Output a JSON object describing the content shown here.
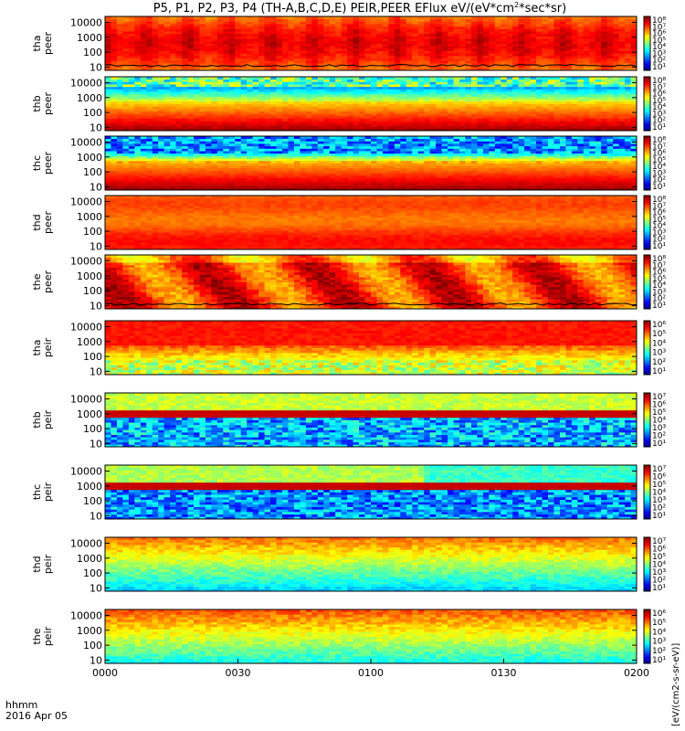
{
  "chart_data": {
    "type": "heatmap",
    "title": "P5, P1, P2, P3, P4 (TH-A,B,C,D,E) PEIR,PEER EFlux eV/(eV*cm",
    "title_sup": "2",
    "title_tail": "*sec*sr)",
    "x_axis": {
      "tick_labels": [
        "0000",
        "0030",
        "0100",
        "0130",
        "0200"
      ],
      "minutes": [
        0,
        30,
        60,
        90,
        120
      ],
      "corner_label_1": "hhmm",
      "corner_label_2": "2016 Apr 05"
    },
    "y_axis": {
      "scale": "log",
      "range": [
        6,
        25000
      ],
      "tick_labels": [
        "10",
        "100",
        "1000",
        "10000"
      ]
    },
    "colorbar_units": "[eV/(cm2-s-sr-eV)]",
    "panels": [
      {
        "probe": "tha",
        "product": "peer",
        "cbar_ticks": [
          "10⁸",
          "10⁷",
          "10⁶",
          "10⁵",
          "10⁴",
          "10³",
          "10²",
          "10¹"
        ],
        "signal": "hot-broad",
        "low_cutoff_line": true
      },
      {
        "probe": "thb",
        "product": "peer",
        "cbar_ticks": [
          "10⁸",
          "10⁷",
          "10⁶",
          "10⁵",
          "10⁴",
          "10³",
          "10²",
          "10¹"
        ],
        "signal": "cold-electrons"
      },
      {
        "probe": "thc",
        "product": "peer",
        "cbar_ticks": [
          "10⁸",
          "10⁷",
          "10⁶",
          "10⁵",
          "10⁴",
          "10³",
          "10²",
          "10¹"
        ],
        "signal": "cold-electrons-noisy"
      },
      {
        "probe": "thd",
        "product": "peer",
        "cbar_ticks": [
          "10⁸",
          "10⁷",
          "10⁶",
          "10⁵",
          "10⁴",
          "10³",
          "10²",
          "10¹"
        ],
        "signal": "warm-uniform"
      },
      {
        "probe": "the",
        "product": "peer",
        "cbar_ticks": [
          "10⁸",
          "10⁷",
          "10⁶",
          "10⁵",
          "10⁴",
          "10³",
          "10²",
          "10¹"
        ],
        "signal": "hot-variable",
        "low_cutoff_line": true
      },
      {
        "probe": "tha",
        "product": "peir",
        "cbar_ticks": [
          "10⁶",
          "10⁵",
          "10⁴",
          "10³",
          "10²",
          "10¹"
        ],
        "signal": "ion-hot"
      },
      {
        "probe": "thb",
        "product": "peir",
        "cbar_ticks": [
          "10⁷",
          "10⁶",
          "10⁵",
          "10⁴",
          "10³",
          "10²",
          "10¹"
        ],
        "signal": "ion-band"
      },
      {
        "probe": "thc",
        "product": "peir",
        "cbar_ticks": [
          "10⁷",
          "10⁶",
          "10⁵",
          "10⁴",
          "10³",
          "10²",
          "10¹"
        ],
        "signal": "ion-band-late"
      },
      {
        "probe": "thd",
        "product": "peir",
        "cbar_ticks": [
          "10⁷",
          "10⁶",
          "10⁵",
          "10⁴",
          "10³",
          "10²",
          "10¹"
        ],
        "signal": "ion-warm"
      },
      {
        "probe": "the",
        "product": "peir",
        "cbar_ticks": [
          "10⁶",
          "10⁵",
          "10⁴",
          "10³",
          "10²",
          "10¹"
        ],
        "signal": "ion-warm-low"
      }
    ]
  }
}
